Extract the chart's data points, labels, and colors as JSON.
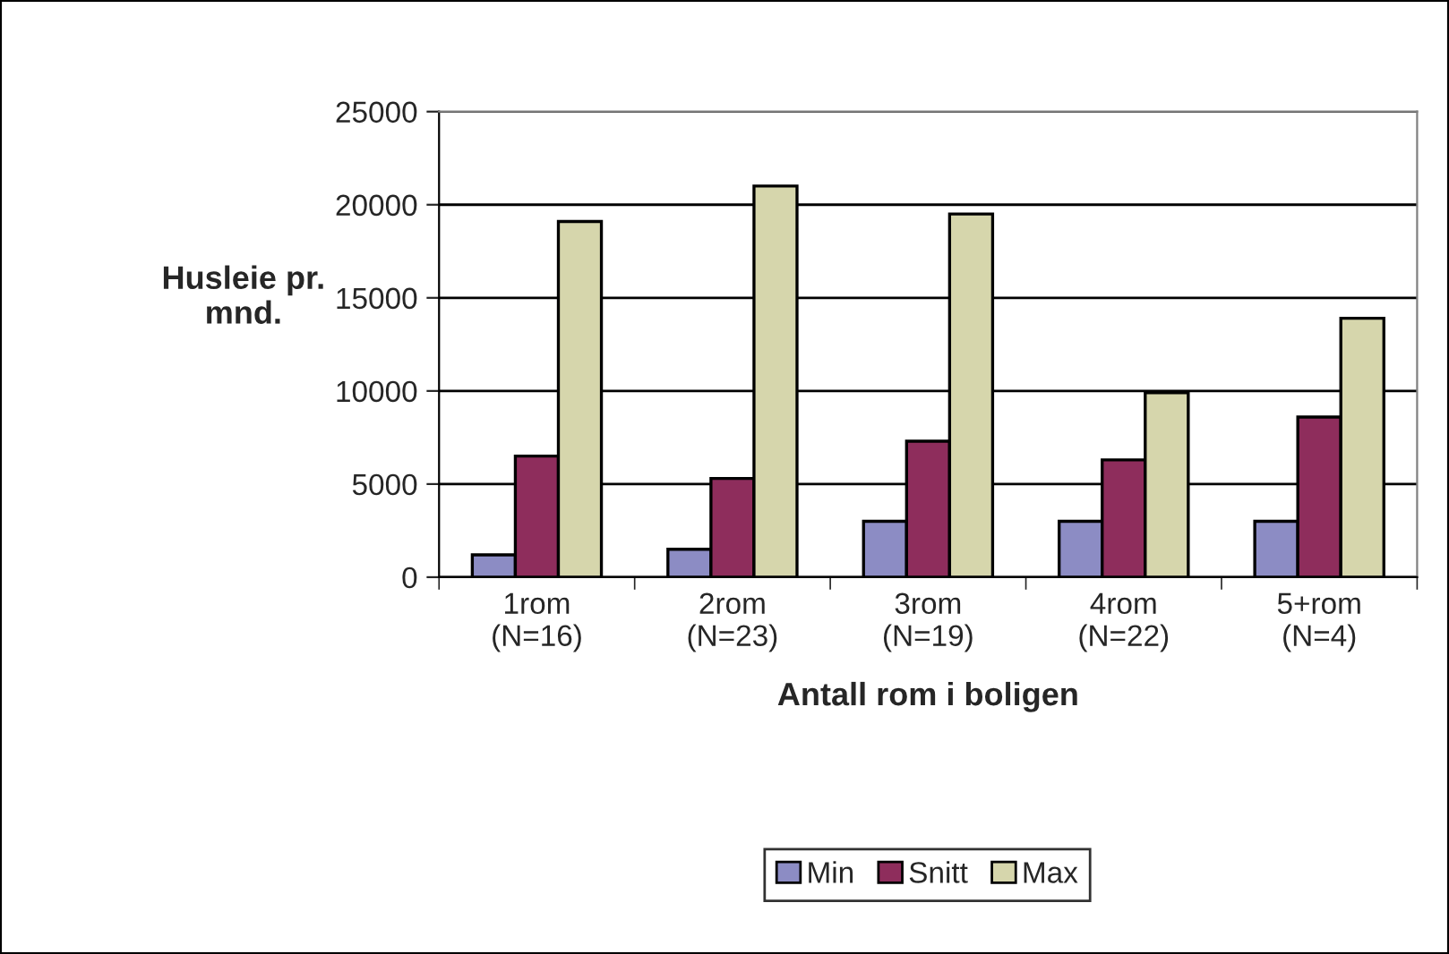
{
  "chart_data": {
    "type": "bar",
    "categories": [
      "1rom\n(N=16)",
      "2rom\n(N=23)",
      "3rom\n(N=19)",
      "4rom\n(N=22)",
      "5+rom\n(N=4)"
    ],
    "series": [
      {
        "name": "Min",
        "color": "#8c8cc4",
        "values": [
          1200,
          1500,
          3000,
          3000,
          3000
        ]
      },
      {
        "name": "Snitt",
        "color": "#8e2d5c",
        "values": [
          6500,
          5300,
          7300,
          6300,
          8600
        ]
      },
      {
        "name": "Max",
        "color": "#d6d6ac",
        "values": [
          19100,
          21000,
          19500,
          9900,
          13900
        ]
      }
    ],
    "xlabel": "Antall rom i boligen",
    "ylabel": "Husleie pr.\nmnd.",
    "ylim": [
      0,
      25000
    ],
    "yticks": [
      0,
      5000,
      10000,
      15000,
      20000,
      25000
    ],
    "grid": "y",
    "legend": "bottom"
  }
}
